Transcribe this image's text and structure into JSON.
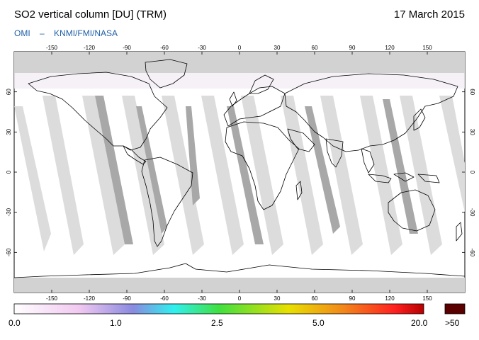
{
  "header": {
    "title": "SO2 vertical column [DU] (TRM)",
    "date": "17 March 2015",
    "credit": [
      "OMI",
      "–",
      "KNMI/FMI/NASA"
    ]
  },
  "map": {
    "lon_ticks": [
      "-150",
      "-120",
      "-90",
      "-60",
      "-30",
      "0",
      "30",
      "60",
      "90",
      "120",
      "150"
    ],
    "lat_ticks": [
      "60",
      "30",
      "0",
      "-30",
      "-60"
    ],
    "colors": {
      "background": "#ffffff",
      "nodata_polar": "#d2d2d2",
      "swath_gap": "#dcdcdc",
      "swath_overlap": "#a8a8a8",
      "coastline": "#000000"
    }
  },
  "colorbar": {
    "labels": [
      "0.0",
      "1.0",
      "2.5",
      "5.0",
      "20.0"
    ],
    "overflow_label": ">50",
    "overflow_color": "#5a0000",
    "gradient_colors": [
      "#ffffff",
      "#f1c8f0",
      "#8a8ae0",
      "#30f0f0",
      "#40e040",
      "#e8e000",
      "#f28a1a",
      "#ff2020",
      "#b80000"
    ]
  }
}
